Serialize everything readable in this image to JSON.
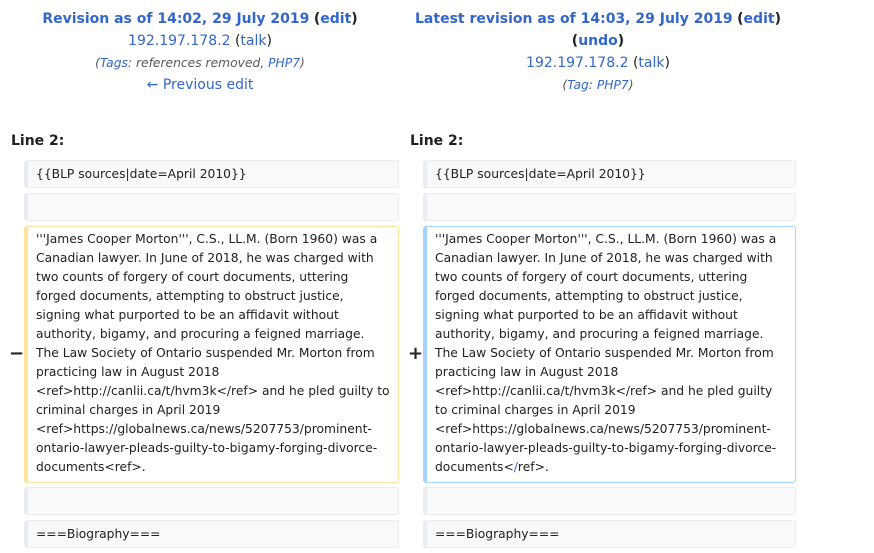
{
  "left_header": {
    "title": "Revision as of 14:02, 29 July 2019",
    "edit_label": "edit",
    "user_ip": "192.197.178.2",
    "talk_label": "talk",
    "tags_label": "Tags",
    "tags_text": ": references removed, ",
    "tag_php7": "PHP7",
    "prev_edit_label": "← Previous edit"
  },
  "right_header": {
    "title": "Latest revision as of 14:03, 29 July 2019",
    "edit_label": "edit",
    "undo_label": "undo",
    "user_ip": "192.197.178.2",
    "talk_label": "talk",
    "tag_label": "Tag",
    "tag_php7": "PHP7"
  },
  "diff": {
    "left_line_label": "Line 2:",
    "right_line_label": "Line 2:",
    "context_line_1": "{{BLP sources|date=April 2010}}",
    "context_line_blank": "",
    "context_line_last": "===Biography===",
    "minus_marker": "−",
    "plus_marker": "+",
    "deleted_text": "'''James Cooper Morton''', C.S., LL.M. (Born 1960) was a Canadian lawyer. In June of 2018, he was charged with two counts of forgery of court documents, uttering forged documents, attempting to obstruct justice, signing what purported to be an affidavit without authority, bigamy, and procuring a feigned marriage. The Law Society of Ontario suspended Mr. Morton from practicing law in August 2018 <ref>http://canlii.ca/t/hvm3k</ref> and he pled guilty to criminal charges in April 2019 <ref>https://globalnews.ca/news/5207753/prominent-ontario-lawyer-pleads-guilty-to-bigamy-forging-divorce-documents<ref>.",
    "added_text_before": "'''James Cooper Morton''', C.S., LL.M. (Born 1960) was a Canadian lawyer. In June of 2018, he was charged with two counts of forgery of court documents, uttering forged documents, attempting to obstruct justice, signing what purported to be an affidavit without authority, bigamy, and procuring a feigned marriage. The Law Society of Ontario suspended Mr. Morton from practicing law in August 2018 <ref>http://canlii.ca/t/hvm3k</ref> and he pled guilty to criminal charges in April 2019 <ref>https://globalnews.ca/news/5207753/prominent-ontario-lawyer-pleads-guilty-to-bigamy-forging-divorce-documents<",
    "added_text_highlight": "/",
    "added_text_after": "ref>."
  },
  "colors": {
    "link": "#3366cc",
    "deleted_border": "#ffe49c",
    "added_border": "#a3d3ff",
    "context_bg": "#f8f9fa"
  }
}
